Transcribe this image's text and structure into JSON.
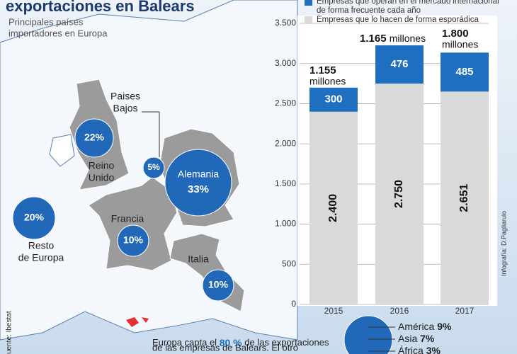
{
  "title": "exportaciones en Balears",
  "subtitle": [
    "Principales países",
    "importadores en Europa"
  ],
  "map": {
    "countries": [
      {
        "name": [
          "Reino",
          "Unido"
        ],
        "share": "22%"
      },
      {
        "name": [
          "Paises",
          "Bajos"
        ],
        "share": "5%"
      },
      {
        "name": [
          "Alemania"
        ],
        "share": "33%"
      },
      {
        "name": [
          "Francia"
        ],
        "share": "10%"
      },
      {
        "name": [
          "Italia"
        ],
        "share": "10%"
      },
      {
        "name": [
          "Resto",
          "de Europa"
        ],
        "share": "20%"
      }
    ]
  },
  "note": {
    "before": "Europa capta el",
    "highlight": "80 %",
    "after": "de las exportaciones",
    "line2": "de las empresas de Balears. El otro"
  },
  "others": [
    {
      "name": "América",
      "share": "9%"
    },
    {
      "name": "Asia",
      "share": "7%"
    },
    {
      "name": "África",
      "share": "3%"
    }
  ],
  "source": "uente: Ibestat",
  "credit": "Infografía: D.Pagliarulo",
  "chart_data": {
    "type": "stacked_bar",
    "categories": [
      "2015",
      "2016",
      "2017"
    ],
    "series": [
      {
        "name": "Empresas que lo hacen de forma esporádica",
        "color": "#d9d9d9",
        "values": [
          2400,
          2750,
          2651
        ],
        "value_labels": [
          "2.400",
          "2.750",
          "2.651"
        ]
      },
      {
        "name": "Empresas que operan en el mercado internacional de forma frecuente cada año",
        "color": "#1f6fc1",
        "values": [
          300,
          476,
          485
        ]
      }
    ],
    "annotations": [
      {
        "amount": "1.155",
        "unit": "millones"
      },
      {
        "amount": "1.165",
        "unit": "millones"
      },
      {
        "amount": "1.800",
        "unit": "millones"
      }
    ],
    "ylim": [
      0,
      3500
    ],
    "yticks": [
      0,
      500,
      {
        "value": 1000,
        "label": "1.000"
      },
      {
        "value": 1500,
        "label": "1.500"
      },
      {
        "value": 2000,
        "label": "2.000"
      },
      {
        "value": 2500,
        "label": "2.500"
      },
      {
        "value": 3000,
        "label": "3.000"
      },
      {
        "value": 3500,
        "label": "3.500"
      }
    ],
    "grid": true
  }
}
